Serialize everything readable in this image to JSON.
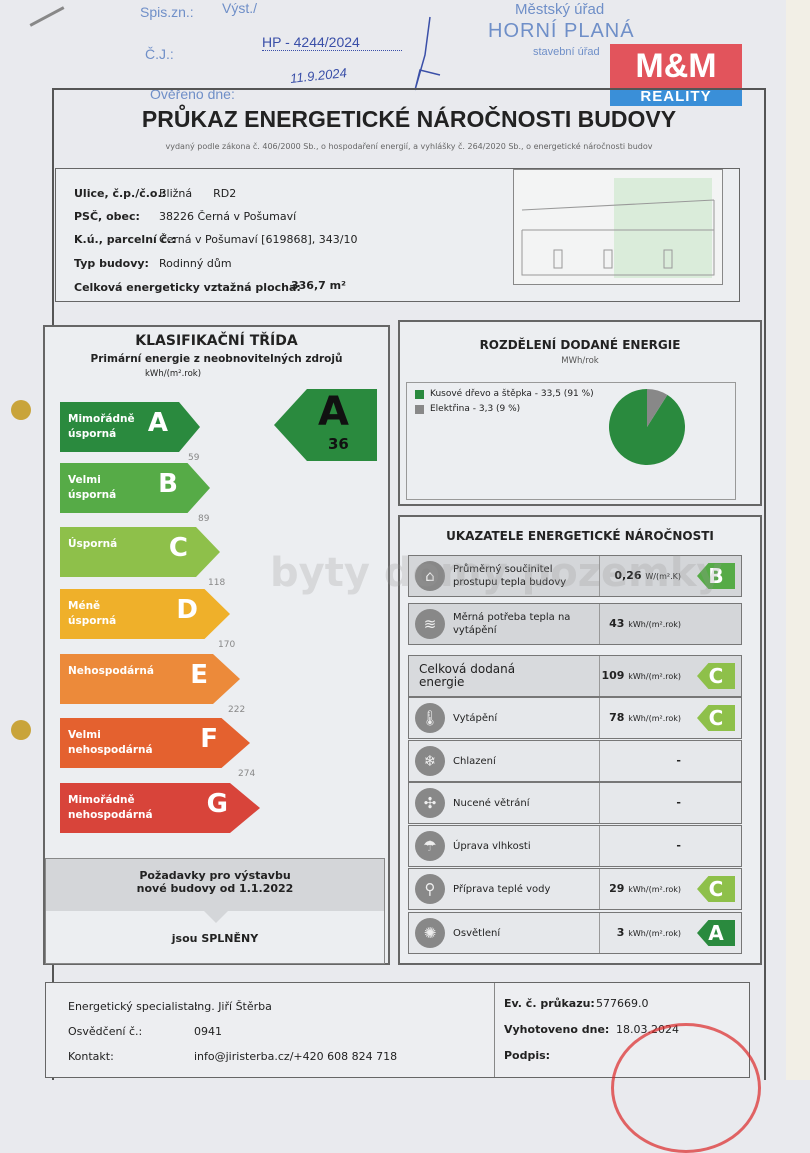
{
  "header": {
    "spis_label": "Spis.zn.:",
    "vyst_label": "Výst./",
    "cj_label": "Č.J.:",
    "cj_value": "HP - 4244/2024",
    "overeno_label": "Ověřeno dne:",
    "overeno_value": "11.9.2024",
    "stamp_line1": "Městský úřad",
    "stamp_line2": "HORNÍ PLANÁ",
    "stamp_line3": "stavební úřad",
    "logo_top": "M&M",
    "logo_bottom": "REALITY"
  },
  "title": "PRŮKAZ ENERGETICKÉ NÁROČNOSTI BUDOVY",
  "subtitle": "vydaný podle zákona č. 406/2000 Sb., o hospodaření energií, a vyhlášky č. 264/2020 Sb., o energetické náročnosti budov",
  "info": {
    "street_label": "Ulice, č.p./č.o.:",
    "street": "Bližná      RD2",
    "psc_label": "PSČ, obec:",
    "psc": "38226 Černá v Pošumaví",
    "ku_label": "K.ú., parcelní č.:",
    "ku": "Černá v Pošumaví [619868], 343/10",
    "type_label": "Typ budovy:",
    "type": "Rodinný dům",
    "area_label": "Celková energeticky vztažná plocha:",
    "area": "336,7 m²"
  },
  "classification": {
    "title": "KLASIFIKAČNÍ TŘÍDA",
    "subtitle": "Primární energie z neobnovitelných zdrojů",
    "unit": "kWh/(m².rok)",
    "classes": [
      {
        "letter": "A",
        "label": "Mimořádně úsporná",
        "color": "#2a8a3e",
        "threshold": "59"
      },
      {
        "letter": "B",
        "label": "Velmi úsporná",
        "color": "#56ab47",
        "threshold": "89"
      },
      {
        "letter": "C",
        "label": "Úsporná",
        "color": "#8ec04a",
        "threshold": "118"
      },
      {
        "letter": "D",
        "label": "Méně úsporná",
        "color": "#efb02a",
        "threshold": "170"
      },
      {
        "letter": "E",
        "label": "Nehospodárná",
        "color": "#ec8a3a",
        "threshold": "222"
      },
      {
        "letter": "F",
        "label": "Velmi nehospodárná",
        "color": "#e4612f",
        "threshold": "274"
      },
      {
        "letter": "G",
        "label": "Mimořádně nehospodárná",
        "color": "#d8443a",
        "threshold": ""
      }
    ],
    "result_letter": "A",
    "result_value": "36",
    "req_title": "Požadavky pro výstavbu nové budovy od 1.1.2022",
    "req_result": "jsou SPLNĚNY"
  },
  "distribution": {
    "title": "ROZDĚLENÍ DODANÉ ENERGIE",
    "unit": "MWh/rok",
    "slices": [
      {
        "label": "Kusové dřevo a štěpka - 33,5 (91 %)",
        "value": 33.5,
        "percent": 91,
        "color": "#2a8a3e"
      },
      {
        "label": "Elektřina - 3,3 (9 %)",
        "value": 3.3,
        "percent": 9,
        "color": "#888888"
      }
    ]
  },
  "indicators": {
    "title": "UKAZATELE ENERGETICKÉ NÁROČNOSTI",
    "rows": [
      {
        "icon": "house-icon",
        "glyph": "⌂",
        "label": "Průměrný součinitel prostupu tepla budovy",
        "value": "0,26",
        "unit": "W/(m².K)",
        "class": "B",
        "color": "#56ab47"
      },
      {
        "icon": "heat-need-icon",
        "glyph": "≋",
        "label": "Měrná potřeba tepla na vytápění",
        "value": "43",
        "unit": "kWh/(m².rok)",
        "class": "",
        "color": ""
      },
      {
        "icon": "",
        "glyph": "",
        "label": "Celková dodaná energie",
        "value": "109",
        "unit": "kWh/(m².rok)",
        "class": "C",
        "color": "#8ec04a"
      },
      {
        "icon": "thermometer-icon",
        "glyph": "🌡",
        "label": "Vytápění",
        "value": "78",
        "unit": "kWh/(m².rok)",
        "class": "C",
        "color": "#8ec04a"
      },
      {
        "icon": "cooling-icon",
        "glyph": "❄",
        "label": "Chlazení",
        "value": "-",
        "unit": "",
        "class": "",
        "color": ""
      },
      {
        "icon": "fan-icon",
        "glyph": "✣",
        "label": "Nucené větrání",
        "value": "-",
        "unit": "",
        "class": "",
        "color": ""
      },
      {
        "icon": "humidity-icon",
        "glyph": "☂",
        "label": "Úprava vlhkosti",
        "value": "-",
        "unit": "",
        "class": "",
        "color": ""
      },
      {
        "icon": "tap-icon",
        "glyph": "⚲",
        "label": "Příprava teplé vody",
        "value": "29",
        "unit": "kWh/(m².rok)",
        "class": "C",
        "color": "#8ec04a"
      },
      {
        "icon": "bulb-icon",
        "glyph": "✺",
        "label": "Osvětlení",
        "value": "3",
        "unit": "kWh/(m².rok)",
        "class": "A",
        "color": "#2a8a3e"
      }
    ]
  },
  "footer": {
    "spec_label": "Energetický specialista:",
    "spec": "Ing. Jiří Štěrba",
    "cert_label": "Osvědčení č.:",
    "cert": "0941",
    "contact_label": "Kontakt:",
    "contact": "info@jiristerba.cz/+420 608 824 718",
    "ev_label": "Ev. č. průkazu:",
    "ev": "577669.0",
    "date_label": "Vyhotoveno dne:",
    "date": "18.03.2024",
    "sign_label": "Podpis:"
  },
  "watermark": "byty domy pozemky"
}
